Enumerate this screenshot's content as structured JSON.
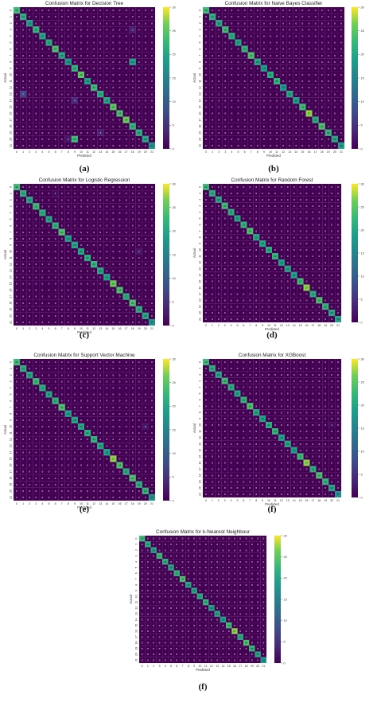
{
  "colormap": "viridis",
  "chart_data": [
    {
      "type": "heatmap",
      "title": "Confusion Matrix for Decision Tree",
      "xlabel": "Predicted",
      "ylabel": "Actual",
      "caption": "(a)",
      "categories": [
        "0",
        "1",
        "2",
        "3",
        "4",
        "5",
        "6",
        "7",
        "8",
        "9",
        "10",
        "11",
        "12",
        "13",
        "14",
        "15",
        "16",
        "17",
        "18",
        "19",
        "20",
        "21"
      ],
      "diagonal": [
        23,
        21,
        19,
        22,
        20,
        21,
        24,
        20,
        18,
        22,
        25,
        19,
        23,
        21,
        20,
        25,
        24,
        26,
        22,
        21,
        20,
        17
      ],
      "off_diagonal": [
        {
          "actual": 3,
          "predicted": 18,
          "value": 3
        },
        {
          "actual": 8,
          "predicted": 18,
          "value": 19
        },
        {
          "actual": 13,
          "predicted": 1,
          "value": 7
        },
        {
          "actual": 14,
          "predicted": 9,
          "value": 4
        },
        {
          "actual": 19,
          "predicted": 13,
          "value": 3
        },
        {
          "actual": 20,
          "predicted": 9,
          "value": 23
        },
        {
          "actual": 20,
          "predicted": 8,
          "value": 2
        }
      ],
      "colorbar": {
        "min": 0,
        "max": 30,
        "ticks": [
          0,
          5,
          10,
          15,
          20,
          25,
          30
        ]
      }
    },
    {
      "type": "heatmap",
      "title": "Confusion Matrix for Naive Bayes Classifier",
      "xlabel": "Predicted",
      "ylabel": "Actual",
      "caption": "(b)",
      "categories": [
        "0",
        "1",
        "2",
        "3",
        "4",
        "5",
        "6",
        "7",
        "8",
        "9",
        "10",
        "11",
        "12",
        "13",
        "14",
        "15",
        "16",
        "17",
        "18",
        "19",
        "20",
        "21"
      ],
      "diagonal": [
        23,
        21,
        20,
        23,
        21,
        20,
        22,
        24,
        20,
        19,
        21,
        22,
        18,
        20,
        19,
        23,
        27,
        21,
        24,
        22,
        20,
        19
      ],
      "off_diagonal": [],
      "colorbar": {
        "min": 0,
        "max": 30,
        "ticks": [
          0,
          5,
          10,
          15,
          20,
          25,
          30
        ]
      }
    },
    {
      "type": "heatmap",
      "title": "Confusion Matrix for Logistic Regression",
      "xlabel": "Predicted",
      "ylabel": "Actual",
      "caption": "(c)",
      "categories": [
        "0",
        "1",
        "2",
        "3",
        "4",
        "5",
        "6",
        "7",
        "8",
        "9",
        "10",
        "11",
        "12",
        "13",
        "14",
        "15",
        "16",
        "17",
        "18",
        "19",
        "20",
        "21"
      ],
      "diagonal": [
        23,
        21,
        20,
        23,
        21,
        20,
        22,
        24,
        19,
        20,
        20,
        21,
        22,
        20,
        19,
        26,
        24,
        21,
        24,
        21,
        20,
        17
      ],
      "off_diagonal": [
        {
          "actual": 1,
          "predicted": 6,
          "value": 1
        },
        {
          "actual": 10,
          "predicted": 19,
          "value": 2
        }
      ],
      "colorbar": {
        "min": 0,
        "max": 30,
        "ticks": [
          0,
          5,
          10,
          15,
          20,
          25,
          30
        ]
      }
    },
    {
      "type": "heatmap",
      "title": "Confusion Matrix for Random Forest",
      "xlabel": "Predicted",
      "ylabel": "Actual",
      "caption": "(d)",
      "categories": [
        "0",
        "1",
        "2",
        "3",
        "4",
        "5",
        "6",
        "7",
        "8",
        "9",
        "10",
        "11",
        "12",
        "13",
        "14",
        "15",
        "16",
        "17",
        "18",
        "19",
        "20",
        "21"
      ],
      "diagonal": [
        23,
        21,
        20,
        23,
        21,
        20,
        22,
        24,
        20,
        20,
        21,
        22,
        19,
        20,
        19,
        23,
        27,
        21,
        24,
        22,
        20,
        19
      ],
      "off_diagonal": [],
      "colorbar": {
        "min": 0,
        "max": 30,
        "ticks": [
          0,
          5,
          10,
          15,
          20,
          25,
          30
        ]
      }
    },
    {
      "type": "heatmap",
      "title": "Confusion Matrix for Support Vector Machine",
      "xlabel": "Predicted",
      "ylabel": "Actual",
      "caption": "(e)",
      "categories": [
        "0",
        "1",
        "2",
        "3",
        "4",
        "5",
        "6",
        "7",
        "8",
        "9",
        "10",
        "11",
        "12",
        "13",
        "14",
        "15",
        "16",
        "17",
        "18",
        "19",
        "20",
        "21"
      ],
      "diagonal": [
        23,
        21,
        20,
        23,
        21,
        20,
        22,
        24,
        19,
        20,
        20,
        21,
        22,
        20,
        19,
        27,
        24,
        21,
        24,
        21,
        22,
        17
      ],
      "off_diagonal": [
        {
          "actual": 10,
          "predicted": 20,
          "value": 2
        }
      ],
      "colorbar": {
        "min": 0,
        "max": 30,
        "ticks": [
          0,
          5,
          10,
          15,
          20,
          25,
          30
        ]
      }
    },
    {
      "type": "heatmap",
      "title": "Confusion Matrix for XGBoost",
      "xlabel": "Predicted",
      "ylabel": "Actual",
      "caption": "(f)",
      "categories": [
        "0",
        "1",
        "2",
        "3",
        "4",
        "5",
        "6",
        "7",
        "8",
        "9",
        "10",
        "11",
        "12",
        "13",
        "14",
        "15",
        "16",
        "17",
        "18",
        "19",
        "20",
        "21"
      ],
      "diagonal": [
        23,
        21,
        20,
        23,
        21,
        20,
        22,
        24,
        20,
        19,
        21,
        22,
        19,
        20,
        19,
        23,
        27,
        21,
        24,
        22,
        20,
        17
      ],
      "off_diagonal": [
        {
          "actual": 10,
          "predicted": 20,
          "value": 1
        }
      ],
      "colorbar": {
        "min": 0,
        "max": 30,
        "ticks": [
          0,
          5,
          10,
          15,
          20,
          25,
          30
        ]
      }
    },
    {
      "type": "heatmap",
      "title": "Confusion Matrix for k-Nearest Neighbour",
      "xlabel": "Predicted",
      "ylabel": "Actual",
      "caption": "(f)",
      "categories": [
        "0",
        "1",
        "2",
        "3",
        "4",
        "5",
        "6",
        "7",
        "8",
        "9",
        "10",
        "11",
        "12",
        "13",
        "14",
        "15",
        "16",
        "17",
        "18",
        "19",
        "20",
        "21"
      ],
      "diagonal": [
        23,
        21,
        20,
        23,
        21,
        20,
        22,
        24,
        20,
        20,
        21,
        22,
        19,
        20,
        19,
        23,
        27,
        21,
        24,
        22,
        20,
        18
      ],
      "off_diagonal": [],
      "colorbar": {
        "min": 0,
        "max": 30,
        "ticks": [
          0,
          5,
          10,
          15,
          20,
          25,
          30
        ]
      }
    }
  ]
}
